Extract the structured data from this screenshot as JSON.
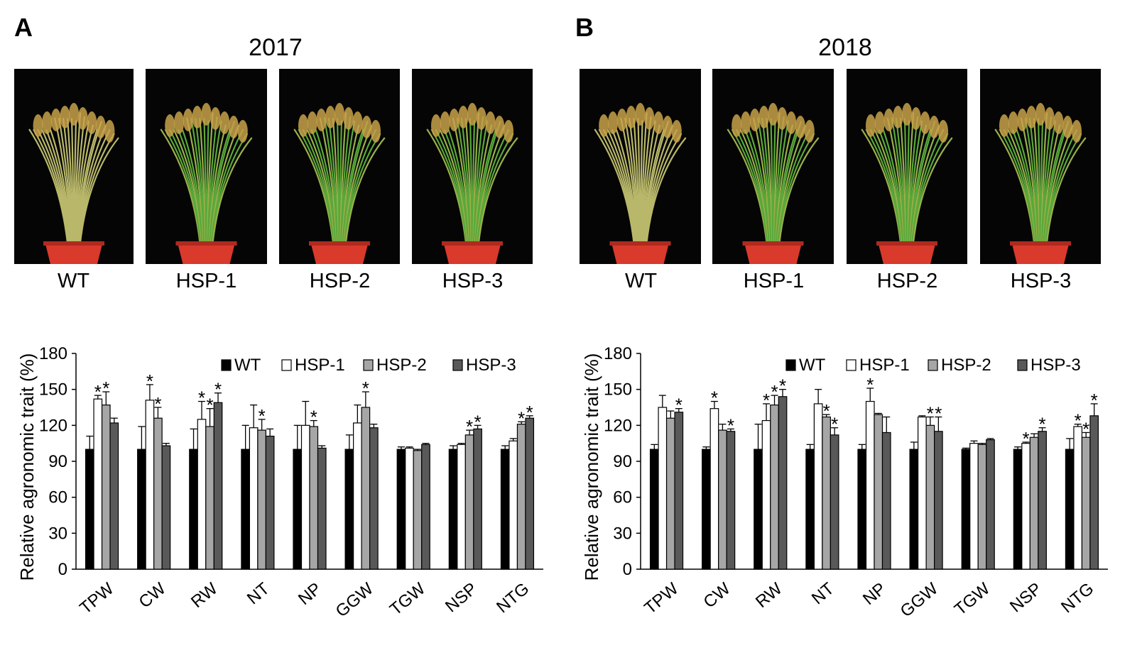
{
  "panels": [
    {
      "letter": "A",
      "year": "2017",
      "genotypes": [
        "WT",
        "HSP-1",
        "HSP-2",
        "HSP-3"
      ]
    },
    {
      "letter": "B",
      "year": "2018",
      "genotypes": [
        "WT",
        "HSP-1",
        "HSP-2",
        "HSP-3"
      ]
    }
  ],
  "colors": {
    "WT": "#000000",
    "HSP-1": "#ffffff",
    "HSP-2": "#a6a6a6",
    "HSP-3": "#595959",
    "pot": "#d93a2b",
    "leaf": "#5aa83a",
    "panicle": "#c8a24a"
  },
  "chart_data": [
    {
      "type": "bar",
      "panel": "A",
      "ylabel": "Relative agronomic trait (%)",
      "ylim": [
        0,
        180
      ],
      "yticks": [
        "0",
        "30",
        "60",
        "90",
        "120",
        "150",
        "180"
      ],
      "categories": [
        "TPW",
        "CW",
        "RW",
        "NT",
        "NP",
        "GGW",
        "TGW",
        "NSP",
        "NTG"
      ],
      "legend": [
        "WT",
        "HSP-1",
        "HSP-2",
        "HSP-3"
      ],
      "series": [
        {
          "name": "WT",
          "values": [
            100,
            100,
            100,
            100,
            100,
            100,
            100,
            100,
            100
          ],
          "errors": [
            11,
            19,
            17,
            20,
            20,
            12,
            2,
            3,
            3
          ]
        },
        {
          "name": "HSP-1",
          "values": [
            142,
            141,
            125,
            118,
            120,
            122,
            101,
            104,
            107
          ],
          "errors": [
            3,
            13,
            15,
            19,
            20,
            15,
            1,
            1,
            2
          ]
        },
        {
          "name": "HSP-2",
          "values": [
            137,
            126,
            119,
            116,
            119,
            135,
            99,
            112,
            121
          ],
          "errors": [
            11,
            9,
            15,
            9,
            5,
            13,
            1,
            4,
            2
          ]
        },
        {
          "name": "HSP-3",
          "values": [
            122,
            103,
            139,
            111,
            101,
            118,
            104,
            117,
            126
          ],
          "errors": [
            4,
            2,
            8,
            6,
            2,
            3,
            1,
            3,
            2
          ]
        }
      ],
      "significant": [
        [
          false,
          false,
          false,
          false,
          false,
          false,
          false,
          false,
          false
        ],
        [
          true,
          true,
          true,
          false,
          false,
          false,
          false,
          false,
          false
        ],
        [
          true,
          true,
          true,
          true,
          true,
          true,
          false,
          true,
          true
        ],
        [
          false,
          false,
          true,
          false,
          false,
          false,
          false,
          true,
          true
        ]
      ],
      "significance_marker": "*"
    },
    {
      "type": "bar",
      "panel": "B",
      "ylabel": "Relative agronomic trait (%)",
      "ylim": [
        0,
        180
      ],
      "yticks": [
        "0",
        "30",
        "60",
        "90",
        "120",
        "150",
        "180"
      ],
      "categories": [
        "TPW",
        "CW",
        "RW",
        "NT",
        "NP",
        "GGW",
        "TGW",
        "NSP",
        "NTG"
      ],
      "legend": [
        "WT",
        "HSP-1",
        "HSP-2",
        "HSP-3"
      ],
      "series": [
        {
          "name": "WT",
          "values": [
            100,
            100,
            100,
            100,
            100,
            100,
            100,
            100,
            100
          ],
          "errors": [
            4,
            2,
            21,
            4,
            4,
            6,
            1,
            2,
            9
          ]
        },
        {
          "name": "HSP-1",
          "values": [
            135,
            134,
            124,
            138,
            140,
            127,
            105,
            105,
            119
          ],
          "errors": [
            10,
            6,
            14,
            12,
            11,
            1,
            2,
            1,
            2
          ]
        },
        {
          "name": "HSP-2",
          "values": [
            126,
            116,
            137,
            127,
            129,
            120,
            104,
            110,
            110
          ],
          "errors": [
            6,
            5,
            8,
            2,
            1,
            7,
            1,
            3,
            4
          ]
        },
        {
          "name": "HSP-3",
          "values": [
            131,
            115,
            144,
            112,
            114,
            115,
            108,
            115,
            128
          ],
          "errors": [
            3,
            2,
            6,
            6,
            13,
            12,
            1,
            3,
            10
          ]
        }
      ],
      "significant": [
        [
          false,
          false,
          false,
          false,
          false,
          false,
          false,
          false,
          false
        ],
        [
          false,
          true,
          true,
          false,
          true,
          false,
          false,
          true,
          true
        ],
        [
          false,
          false,
          true,
          true,
          false,
          true,
          false,
          false,
          true
        ],
        [
          true,
          true,
          true,
          true,
          false,
          true,
          false,
          true,
          true
        ]
      ],
      "significance_marker": "*"
    }
  ]
}
